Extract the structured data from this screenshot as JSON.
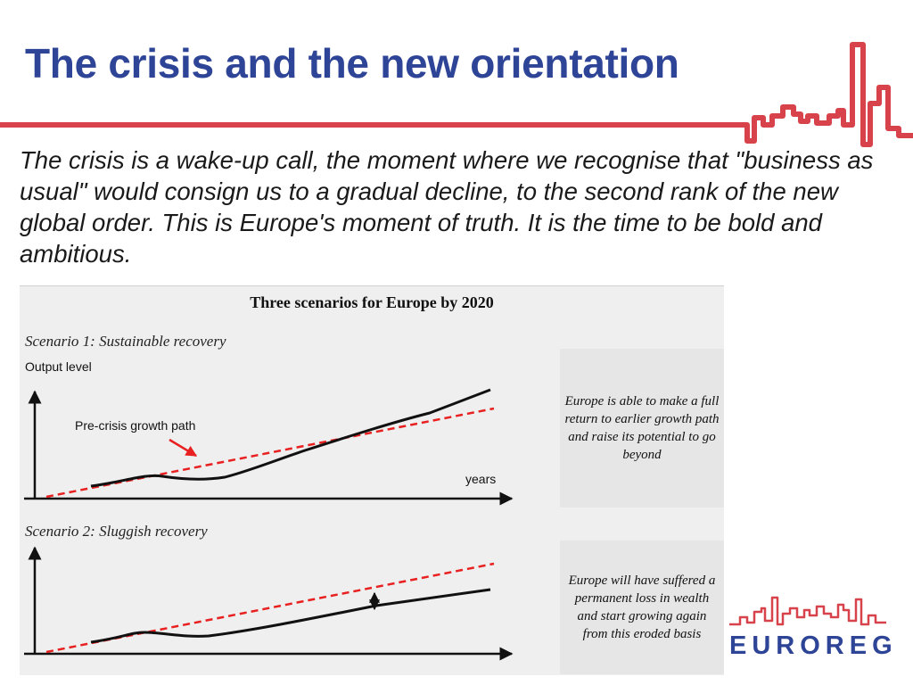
{
  "slide": {
    "title": "The crisis and the new orientation",
    "body": "The crisis is a wake-up call, the moment where we recognise that \"business as usual\" would consign us to a gradual decline, to the second rank of the new global order. This is Europe's moment of truth. It is the time to be bold and ambitious."
  },
  "figure": {
    "title": "Three scenarios for Europe by 2020",
    "y_axis_label": "Output level",
    "pre_crisis_label": "Pre-crisis growth path",
    "x_axis_label": "years",
    "scenarios": [
      {
        "title": "Scenario 1: Sustainable recovery",
        "description": "Europe is able to make a full return to earlier growth path and raise its potential to go beyond"
      },
      {
        "title": "Scenario 2: Sluggish recovery",
        "description": "Europe will have suffered a permanent loss in wealth and start growing again from this eroded basis"
      }
    ]
  },
  "colors": {
    "title": "#2e4496",
    "accent_red": "#d8434b",
    "pre_crisis_line": "#e82020"
  },
  "logo": {
    "wordmark": "EUROREG"
  }
}
